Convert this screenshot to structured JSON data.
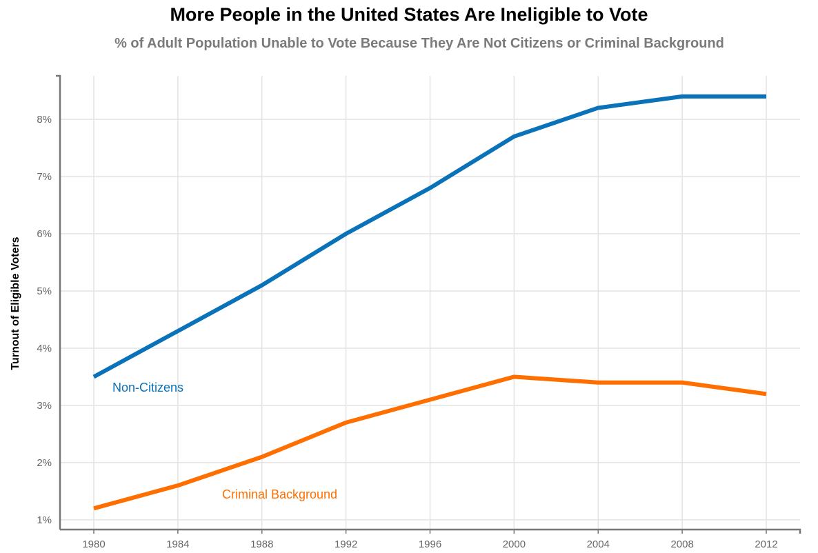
{
  "chart_data": {
    "type": "line",
    "title": "More People in the United States Are Ineligible to Vote",
    "subtitle": "% of Adult Population Unable to Vote Because They Are Not Citizens or Criminal Background",
    "xlabel": "",
    "ylabel": "Turnout of Eligible Voters",
    "x": [
      1980,
      1984,
      1988,
      1992,
      1996,
      2000,
      2004,
      2008,
      2012
    ],
    "x_tick_labels": [
      "1980",
      "1984",
      "1988",
      "1992",
      "1996",
      "2000",
      "2004",
      "2008",
      "2012"
    ],
    "y_ticks": [
      1,
      2,
      3,
      4,
      5,
      6,
      7,
      8
    ],
    "y_tick_labels": [
      "1%",
      "2%",
      "3%",
      "4%",
      "5%",
      "6%",
      "7%",
      "8%"
    ],
    "ylim": [
      0.83,
      8.76
    ],
    "grid": true,
    "legend": "inline labels",
    "series": [
      {
        "name": "Non-Citizens",
        "color": "#0a72b8",
        "values": [
          3.5,
          4.3,
          5.1,
          6.0,
          6.8,
          7.7,
          8.2,
          8.4,
          8.4
        ]
      },
      {
        "name": "Criminal Background",
        "color": "#ff6f00",
        "values": [
          1.2,
          1.6,
          2.1,
          2.7,
          3.1,
          3.5,
          3.4,
          3.4,
          3.2
        ]
      }
    ]
  }
}
